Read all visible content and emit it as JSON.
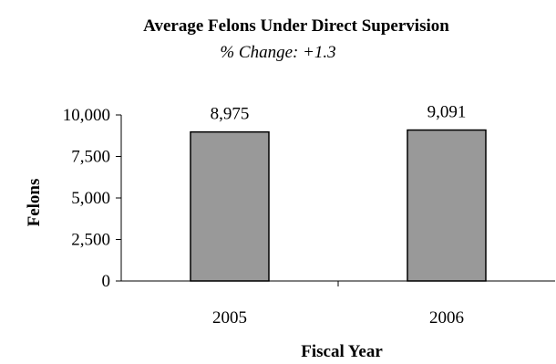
{
  "chart_data": {
    "type": "bar",
    "title": "Average Felons Under Direct Supervision",
    "subtitle": "% Change: +1.3",
    "xlabel": "Fiscal Year",
    "ylabel": "Felons",
    "categories": [
      "2005",
      "2006"
    ],
    "values": [
      8975,
      9091
    ],
    "value_labels": [
      "8,975",
      "9,091"
    ],
    "ylim": [
      0,
      10000
    ],
    "yticks": [
      0,
      2500,
      5000,
      7500,
      10000
    ],
    "ytick_labels": [
      "0",
      "2,500",
      "5,000",
      "7,500",
      "10,000"
    ],
    "grid": false,
    "legend": "none",
    "bar_color": "#999999",
    "bar_edge_color": "#000000"
  }
}
